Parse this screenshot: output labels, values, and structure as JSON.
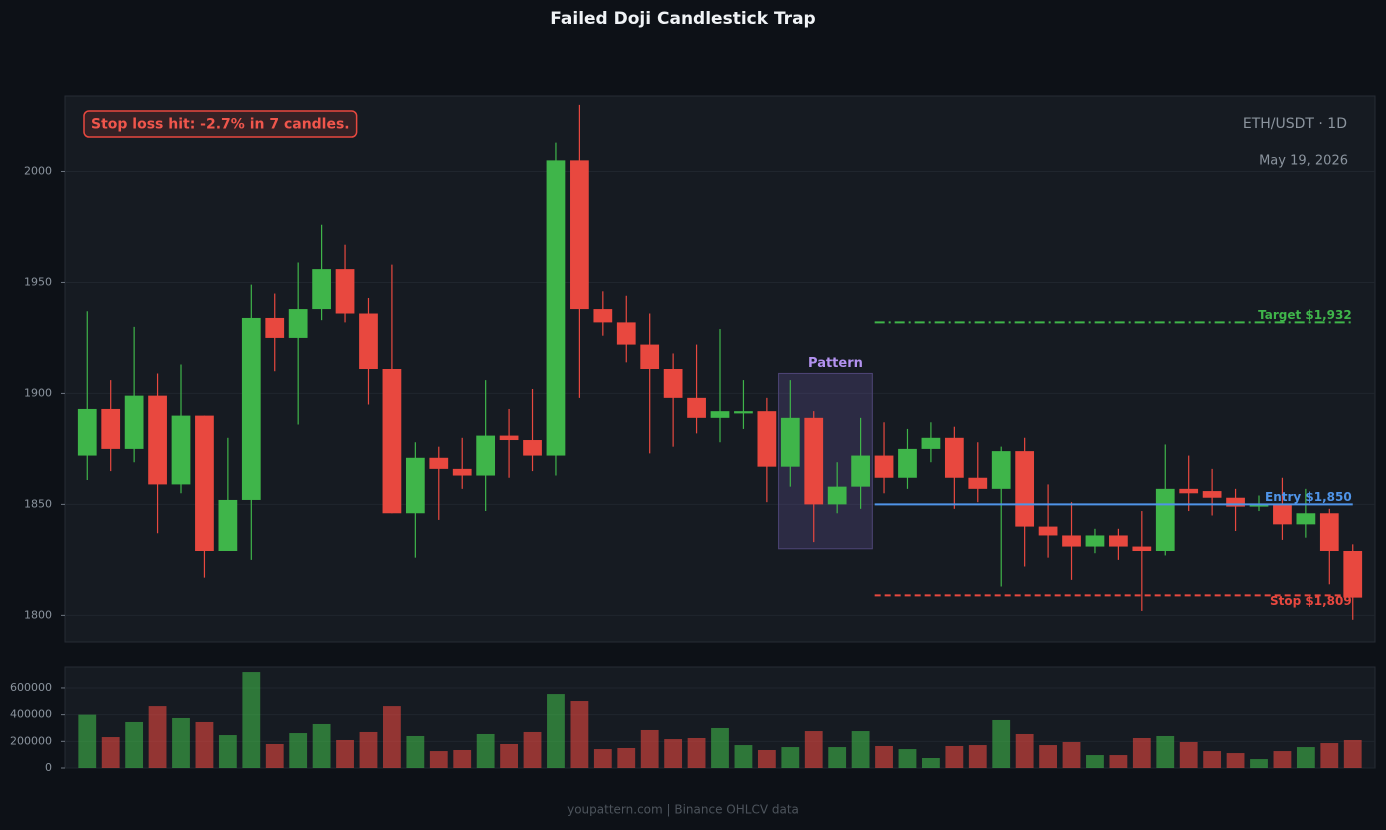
{
  "chart_data": {
    "type": "candlestick",
    "title": "Failed Doji Candlestick Trap",
    "symbol": "ETH/USDT · 1D",
    "date": "May 19, 2026",
    "note": "Stop loss hit: -2.7% in 7 candles.",
    "source": "youpattern.com | Binance OHLCV data",
    "up_color": "#3fb54a",
    "down_color": "#e8483f",
    "open": [
      1872,
      1893,
      1875,
      1899,
      1859,
      1890,
      1829,
      1852,
      1934,
      1925,
      1938,
      1956,
      1936,
      1911,
      1846,
      1871,
      1866,
      1863,
      1881,
      1879,
      1872,
      2005,
      1938,
      1932,
      1922,
      1911,
      1898,
      1889,
      1891,
      1892,
      1867,
      1889,
      1850,
      1858,
      1872,
      1862,
      1875,
      1880,
      1862,
      1857,
      1874,
      1840,
      1836,
      1831,
      1836,
      1831,
      1829,
      1857,
      1856,
      1853,
      1849,
      1850,
      1841,
      1846,
      1829
    ],
    "high": [
      1937,
      1906,
      1930,
      1909,
      1913,
      1890,
      1880,
      1949,
      1945,
      1959,
      1976,
      1967,
      1943,
      1958,
      1878,
      1876,
      1880,
      1906,
      1893,
      1902,
      2013,
      2030,
      1946,
      1944,
      1936,
      1918,
      1922,
      1929,
      1906,
      1898,
      1906,
      1892,
      1869,
      1889,
      1887,
      1884,
      1887,
      1885,
      1878,
      1876,
      1880,
      1859,
      1851,
      1839,
      1839,
      1847,
      1877,
      1872,
      1866,
      1857,
      1854,
      1862,
      1857,
      1848,
      1832
    ],
    "low": [
      1861,
      1865,
      1869,
      1837,
      1855,
      1817,
      1829,
      1825,
      1910,
      1886,
      1933,
      1932,
      1895,
      1846,
      1826,
      1843,
      1857,
      1847,
      1862,
      1865,
      1863,
      1898,
      1926,
      1914,
      1873,
      1876,
      1882,
      1878,
      1884,
      1851,
      1858,
      1833,
      1846,
      1848,
      1855,
      1857,
      1869,
      1848,
      1851,
      1813,
      1822,
      1826,
      1816,
      1828,
      1825,
      1802,
      1827,
      1847,
      1845,
      1838,
      1847,
      1834,
      1835,
      1814,
      1798
    ],
    "close": [
      1893,
      1875,
      1899,
      1859,
      1890,
      1829,
      1852,
      1934,
      1925,
      1938,
      1956,
      1936,
      1911,
      1846,
      1871,
      1866,
      1863,
      1881,
      1879,
      1872,
      2005,
      1938,
      1932,
      1922,
      1911,
      1898,
      1889,
      1892,
      1892,
      1867,
      1889,
      1850,
      1858,
      1872,
      1862,
      1875,
      1880,
      1862,
      1857,
      1874,
      1840,
      1836,
      1831,
      1836,
      1831,
      1829,
      1857,
      1855,
      1853,
      1849,
      1850,
      1841,
      1846,
      1829,
      1808
    ],
    "volume": [
      400000,
      232000,
      345000,
      464000,
      375000,
      345000,
      247000,
      719000,
      180000,
      262000,
      330000,
      210000,
      270000,
      464000,
      240000,
      127000,
      135000,
      255000,
      180000,
      270000,
      554000,
      502000,
      142000,
      150000,
      285000,
      217000,
      225000,
      300000,
      172000,
      135000,
      157000,
      277000,
      157000,
      277000,
      165000,
      142000,
      75000,
      165000,
      172000,
      360000,
      255000,
      172000,
      195000,
      97000,
      97000,
      225000,
      240000,
      195000,
      127000,
      112000,
      67000,
      127000,
      157000,
      187000,
      210000
    ],
    "ylim": [
      1788,
      2034
    ],
    "yticks": [
      1800,
      1850,
      1900,
      1950,
      2000
    ],
    "volume_ylim": [
      0,
      757000
    ],
    "volume_yticks": [
      0,
      200000,
      400000,
      600000
    ],
    "grid": true,
    "pattern": {
      "label": "Pattern",
      "start": 30,
      "end": 33,
      "low": 1830,
      "high": 1909
    },
    "levels": [
      {
        "name": "Target $1,932",
        "value": 1932,
        "color": "#3fb54a",
        "style": "dash-dot"
      },
      {
        "name": "Entry $1,850",
        "value": 1850,
        "color": "#4f94e8",
        "style": "solid"
      },
      {
        "name": "Stop $1,809",
        "value": 1809,
        "color": "#e8483f",
        "style": "dashed"
      }
    ]
  }
}
